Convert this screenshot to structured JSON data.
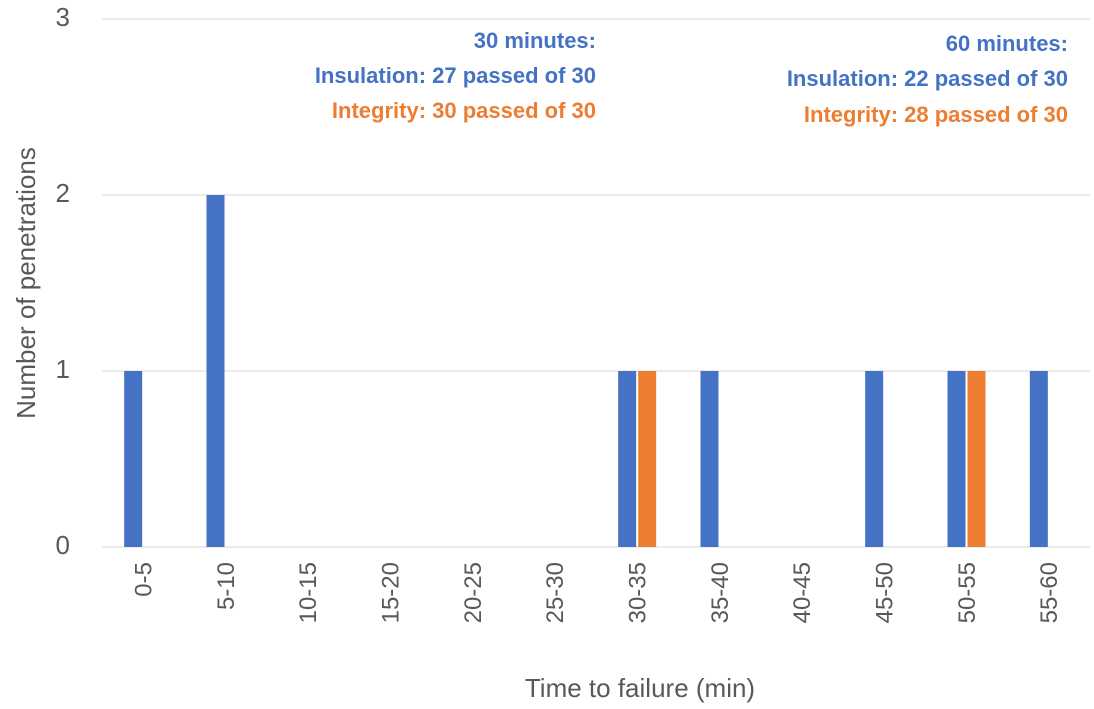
{
  "chart_data": {
    "type": "bar",
    "categories": [
      "0-5",
      "5-10",
      "10-15",
      "15-20",
      "20-25",
      "25-30",
      "30-35",
      "35-40",
      "40-45",
      "45-50",
      "50-55",
      "55-60"
    ],
    "series": [
      {
        "color": "#4472c4",
        "values": [
          1,
          2,
          0,
          0,
          0,
          0,
          1,
          1,
          0,
          1,
          1,
          1
        ]
      },
      {
        "color": "#ed7d31",
        "values": [
          0,
          0,
          0,
          0,
          0,
          0,
          1,
          0,
          0,
          0,
          1,
          0
        ]
      }
    ],
    "ylim": [
      0,
      3
    ],
    "yticks": [
      0,
      1,
      2,
      3
    ],
    "grid": true,
    "x_label": "Time to failure (min)",
    "y_label": "Number of penetrations",
    "annotations": [
      {
        "text": "30 minutes:",
        "color": "#4472c4"
      },
      {
        "text": "Insulation: 27 passed of 30",
        "color": "#4472c4"
      },
      {
        "text": "Integrity: 30 passed of 30",
        "color": "#ed7d31"
      },
      {
        "text": "60 minutes:",
        "color": "#4472c4"
      },
      {
        "text": "Insulation: 22 passed of 30",
        "color": "#4472c4"
      },
      {
        "text": "Integrity: 28 passed of 30",
        "color": "#ed7d31"
      }
    ]
  }
}
